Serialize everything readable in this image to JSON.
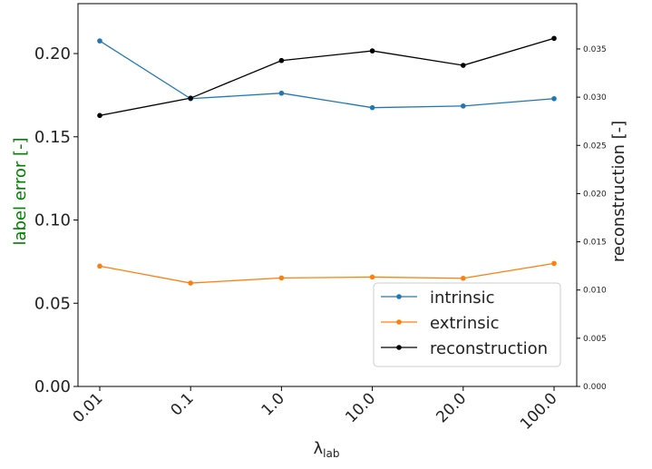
{
  "chart_data": {
    "type": "line",
    "categories": [
      "0.01",
      "0.1",
      "1.0",
      "10.0",
      "20.0",
      "100.0"
    ],
    "xlabel": {
      "main": "λ",
      "sub": "lab"
    },
    "ylabel_left": "label error [-]",
    "ylabel_left_color": "#008000",
    "ylabel_right": "reconstruction [-]",
    "ylim_left": [
      0,
      0.23
    ],
    "ylim_right": [
      0,
      0.0397
    ],
    "yticks_left": [
      "0.00",
      "0.05",
      "0.10",
      "0.15",
      "0.20"
    ],
    "yticks_right": [
      "0.000",
      "0.005",
      "0.010",
      "0.015",
      "0.020",
      "0.025",
      "0.030",
      "0.035"
    ],
    "grid": false,
    "legend_position": "lower-right",
    "series": [
      {
        "name": "intrinsic",
        "axis": "left",
        "color": "#1f77b4",
        "values": [
          0.2076,
          0.1729,
          0.1762,
          0.1675,
          0.1685,
          0.1729
        ]
      },
      {
        "name": "extrinsic",
        "axis": "left",
        "color": "#ff7f0e",
        "values": [
          0.0723,
          0.0621,
          0.0652,
          0.0657,
          0.065,
          0.0739
        ]
      },
      {
        "name": "reconstruction",
        "axis": "right",
        "color": "#000000",
        "values": [
          0.0281,
          0.0299,
          0.0338,
          0.0348,
          0.0333,
          0.0361
        ]
      }
    ]
  }
}
